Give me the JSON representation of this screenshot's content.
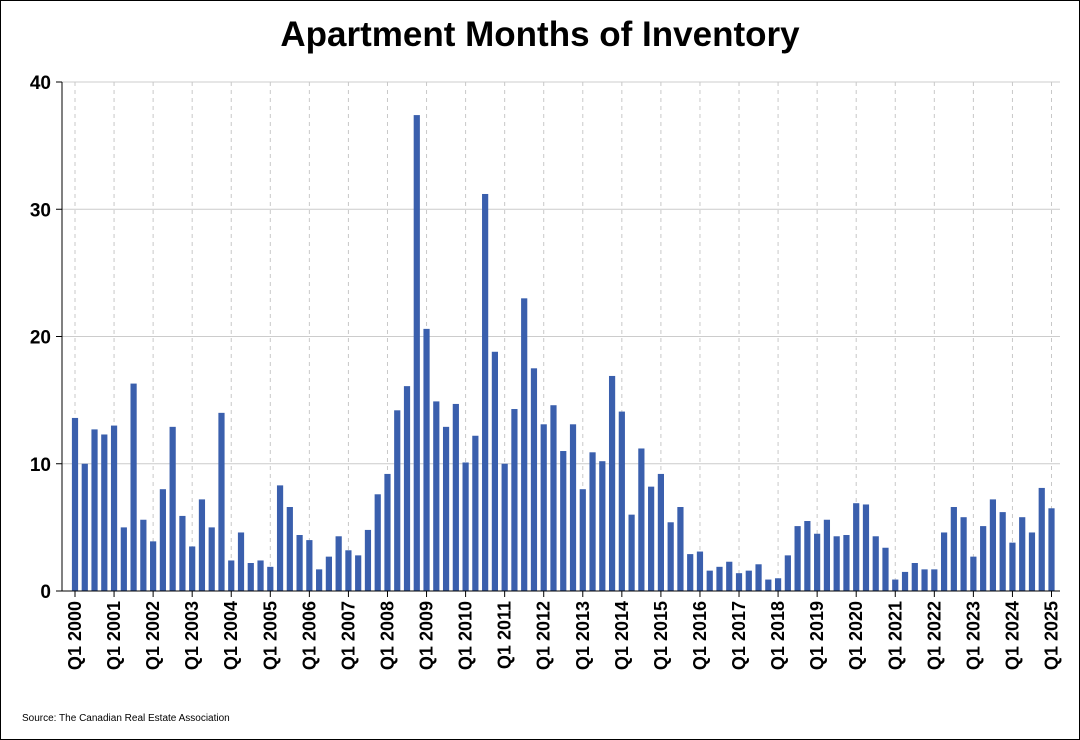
{
  "chart_data": {
    "type": "bar",
    "title": "Apartment Months of Inventory",
    "source": "Source: The Canadian Real Estate Association",
    "xlabel": "",
    "ylabel": "",
    "ylim": [
      0,
      40
    ],
    "yticks": [
      0,
      10,
      20,
      30,
      40
    ],
    "grid": true,
    "bar_color": "#3A5FAD",
    "tick_labels": [
      "Q1 2000",
      "Q1 2001",
      "Q1 2002",
      "Q1 2003",
      "Q1 2004",
      "Q1 2005",
      "Q1 2006",
      "Q1 2007",
      "Q1 2008",
      "Q1 2009",
      "Q1 2010",
      "Q1 2011",
      "Q1 2012",
      "Q1 2013",
      "Q1 2014",
      "Q1 2015",
      "Q1 2016",
      "Q1 2017",
      "Q1 2018",
      "Q1 2019",
      "Q1 2020",
      "Q1 2021",
      "Q1 2022",
      "Q1 2023",
      "Q1 2024",
      "Q1 2025"
    ],
    "series": [
      {
        "name": "Apartment Months of Inventory",
        "start": "Q1 2000",
        "frequency": "quarterly",
        "values": [
          13.6,
          10.0,
          12.7,
          12.3,
          13.0,
          5.0,
          16.3,
          5.6,
          3.9,
          8.0,
          12.9,
          5.9,
          3.5,
          7.2,
          5.0,
          14.0,
          2.4,
          4.6,
          2.2,
          2.4,
          1.9,
          8.3,
          6.6,
          4.4,
          4.0,
          1.7,
          2.7,
          4.3,
          3.2,
          2.8,
          4.8,
          7.6,
          9.2,
          14.2,
          16.1,
          37.4,
          20.6,
          14.9,
          12.9,
          14.7,
          10.1,
          12.2,
          31.2,
          18.8,
          10.0,
          14.3,
          23.0,
          17.5,
          13.1,
          14.6,
          11.0,
          13.1,
          8.0,
          10.9,
          10.2,
          16.9,
          14.1,
          6.0,
          11.2,
          8.2,
          9.2,
          5.4,
          6.6,
          2.9,
          3.1,
          1.6,
          1.9,
          2.3,
          1.4,
          1.6,
          2.1,
          0.9,
          1.0,
          2.8,
          5.1,
          5.5,
          4.5,
          5.6,
          4.3,
          4.4,
          6.9,
          6.8,
          4.3,
          3.4,
          0.9,
          1.5,
          2.2,
          1.7,
          1.7,
          4.6,
          6.6,
          5.8,
          2.7,
          5.1,
          7.2,
          6.2,
          3.8,
          5.8,
          4.6,
          8.1,
          6.5
        ]
      }
    ]
  }
}
